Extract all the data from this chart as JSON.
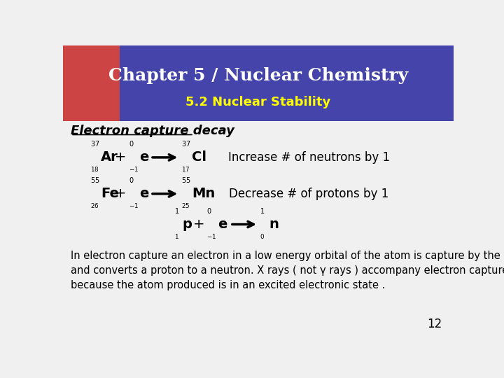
{
  "title": "Chapter 5 / Nuclear Chemistry",
  "subtitle": "5.2 Nuclear Stability",
  "title_color": "#ffffff",
  "subtitle_color": "#ffff00",
  "header_bg": "#4444aa",
  "body_bg": "#f0f0f0",
  "section_title": "Electron capture decay",
  "eq1_note": "Increase # of neutrons by 1",
  "eq2_note": "Decrease # of protons by 1",
  "body_text1": "In electron capture an electron in a low energy orbital of the atom is capture by the nucleus",
  "body_text2": "and converts a proton to a neutron. X rays ( not γ rays ) accompany electron capture ,",
  "body_text3": "because the atom produced is in an excited electronic state .",
  "page_number": "12",
  "text_color": "#000000"
}
